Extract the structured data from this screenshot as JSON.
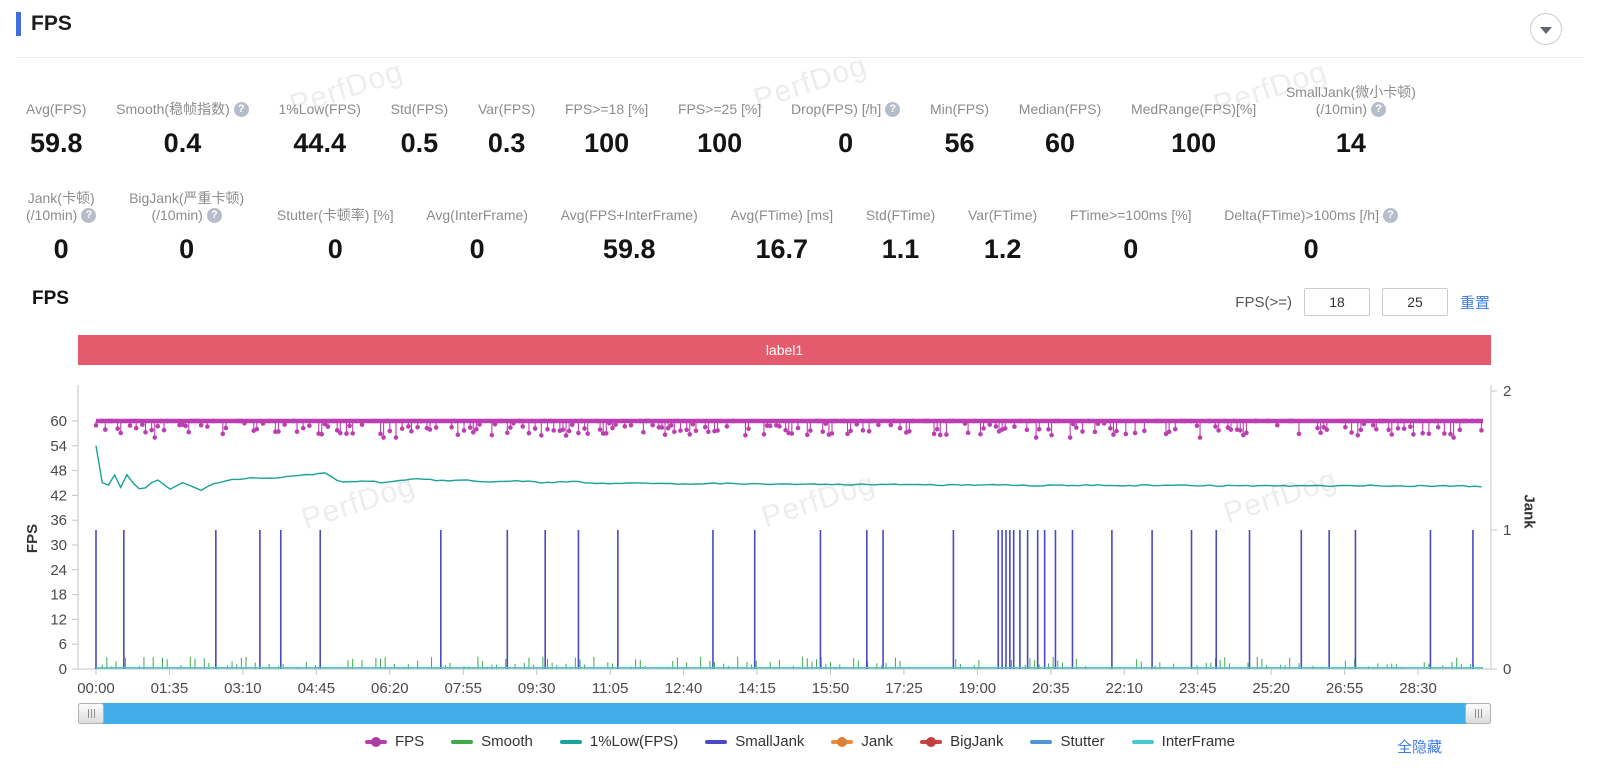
{
  "header": {
    "title": "FPS"
  },
  "stats_row1": [
    {
      "label": "Avg(FPS)",
      "value": "59.8",
      "help": false
    },
    {
      "label": "Smooth(稳帧指数)",
      "value": "0.4",
      "help": true
    },
    {
      "label": "1%Low(FPS)",
      "value": "44.4",
      "help": false
    },
    {
      "label": "Std(FPS)",
      "value": "0.5",
      "help": false
    },
    {
      "label": "Var(FPS)",
      "value": "0.3",
      "help": false
    },
    {
      "label": "FPS>=18 [%]",
      "value": "100",
      "help": false
    },
    {
      "label": "FPS>=25 [%]",
      "value": "100",
      "help": false
    },
    {
      "label": "Drop(FPS) [/h]",
      "value": "0",
      "help": true
    },
    {
      "label": "Min(FPS)",
      "value": "56",
      "help": false
    },
    {
      "label": "Median(FPS)",
      "value": "60",
      "help": false
    },
    {
      "label": "MedRange(FPS)[%]",
      "value": "100",
      "help": false
    },
    {
      "label": "SmallJank(微小卡顿)\n(/10min)",
      "value": "14",
      "help": true
    }
  ],
  "stats_row2": [
    {
      "label": "Jank(卡顿)\n(/10min)",
      "value": "0",
      "help": true
    },
    {
      "label": "BigJank(严重卡顿)\n(/10min)",
      "value": "0",
      "help": true
    },
    {
      "label": "Stutter(卡顿率) [%]",
      "value": "0",
      "help": false
    },
    {
      "label": "Avg(InterFrame)",
      "value": "0",
      "help": false
    },
    {
      "label": "Avg(FPS+InterFrame)",
      "value": "59.8",
      "help": false
    },
    {
      "label": "Avg(FTime) [ms]",
      "value": "16.7",
      "help": false
    },
    {
      "label": "Std(FTime)",
      "value": "1.1",
      "help": false
    },
    {
      "label": "Var(FTime)",
      "value": "1.2",
      "help": false
    },
    {
      "label": "FTime>=100ms [%]",
      "value": "0",
      "help": false
    },
    {
      "label": "Delta(FTime)>100ms [/h]",
      "value": "0",
      "help": true
    }
  ],
  "section": {
    "title": "FPS",
    "fps_ge_label": "FPS(>=)",
    "input1": "18",
    "input2": "25",
    "reset_label": "重置"
  },
  "banner": {
    "text": "label1",
    "color": "#e55b6e"
  },
  "watermark": {
    "text": "PerfDog"
  },
  "footer": {
    "hide_all_label": "全隐藏"
  },
  "chart_data": {
    "type": "line",
    "title": "label1",
    "seed": 1337,
    "x_axis": {
      "tick_labels": [
        "00:00",
        "01:35",
        "03:10",
        "04:45",
        "06:20",
        "07:55",
        "09:30",
        "11:05",
        "12:40",
        "14:15",
        "15:50",
        "17:25",
        "19:00",
        "20:35",
        "22:10",
        "23:45",
        "25:20",
        "26:55",
        "28:30"
      ],
      "tick_interval_s": 95,
      "duration_s": 1794
    },
    "y_left": {
      "label": "FPS",
      "ticks": [
        0,
        6,
        12,
        18,
        24,
        30,
        36,
        42,
        48,
        54,
        60
      ],
      "range": [
        0,
        60
      ]
    },
    "y_right": {
      "label": "Jank",
      "ticks": [
        0,
        1,
        2
      ],
      "range": [
        0,
        2
      ]
    },
    "grid": false,
    "legend_position": "bottom",
    "series": [
      {
        "name": "FPS",
        "color": "#bb3fb1",
        "axis": "left",
        "style": "baseline_dots",
        "baseline": 60,
        "dip_probability": 0.42,
        "dip_depth_max": 3.5,
        "min_value": 56,
        "sample_interval_s": 4
      },
      {
        "name": "Smooth",
        "color": "#3faa4a",
        "axis": "left",
        "style": "spikes",
        "spike_probability": 0.5,
        "spike_max": 3,
        "sample_interval_s": 6
      },
      {
        "name": "1%Low(FPS)",
        "color": "#1aa295",
        "axis": "left",
        "style": "line",
        "keypoints": [
          [
            0,
            54
          ],
          [
            6,
            47
          ],
          [
            10,
            43.2
          ],
          [
            16,
            44.5
          ],
          [
            20,
            47.8
          ],
          [
            26,
            46.5
          ],
          [
            30,
            44.2
          ],
          [
            36,
            43.4
          ],
          [
            40,
            47
          ],
          [
            46,
            45.5
          ],
          [
            52,
            44
          ],
          [
            60,
            43.2
          ],
          [
            70,
            44.8
          ],
          [
            78,
            46
          ],
          [
            88,
            44.6
          ],
          [
            96,
            43.5
          ],
          [
            104,
            44.3
          ],
          [
            112,
            45.1
          ],
          [
            124,
            44.2
          ],
          [
            136,
            43.2
          ],
          [
            150,
            44.8
          ],
          [
            165,
            45.3
          ],
          [
            180,
            45.9
          ],
          [
            200,
            46.3
          ],
          [
            220,
            46.0
          ],
          [
            240,
            46.5
          ],
          [
            260,
            46.8
          ],
          [
            280,
            47.1
          ],
          [
            300,
            47.4
          ],
          [
            308,
            45.7
          ],
          [
            320,
            45.2
          ],
          [
            345,
            45.6
          ],
          [
            370,
            45.1
          ],
          [
            395,
            45.7
          ],
          [
            420,
            46.0
          ],
          [
            445,
            45.5
          ],
          [
            475,
            45.8
          ],
          [
            505,
            45.3
          ],
          [
            540,
            45.6
          ],
          [
            580,
            45.1
          ],
          [
            620,
            45.3
          ],
          [
            660,
            44.9
          ],
          [
            700,
            45.1
          ],
          [
            750,
            44.8
          ],
          [
            800,
            44.9
          ],
          [
            860,
            44.7
          ],
          [
            920,
            44.8
          ],
          [
            980,
            44.6
          ],
          [
            1040,
            44.7
          ],
          [
            1100,
            44.5
          ],
          [
            1160,
            44.6
          ],
          [
            1220,
            44.4
          ],
          [
            1280,
            44.5
          ],
          [
            1340,
            44.4
          ],
          [
            1400,
            44.5
          ],
          [
            1460,
            44.3
          ],
          [
            1520,
            44.4
          ],
          [
            1580,
            44.3
          ],
          [
            1640,
            44.4
          ],
          [
            1700,
            44.3
          ],
          [
            1794,
            44.2
          ]
        ]
      },
      {
        "name": "SmallJank",
        "color": "#4a49c9",
        "axis": "right",
        "style": "impulse",
        "impulse_value": 1,
        "times_s": [
          0,
          36,
          155,
          212,
          239,
          290,
          446,
          532,
          581,
          624,
          675,
          798,
          852,
          937,
          997,
          1018,
          1109,
          1167,
          1172,
          1177,
          1182,
          1187,
          1195,
          1205,
          1218,
          1227,
          1241,
          1263,
          1314,
          1366,
          1417,
          1449,
          1492,
          1559,
          1595,
          1629,
          1726,
          1781
        ]
      },
      {
        "name": "Jank",
        "color": "#ee8a3c",
        "axis": "right",
        "style": "flat",
        "value": 0
      },
      {
        "name": "BigJank",
        "color": "#d14341",
        "axis": "right",
        "style": "flat",
        "value": 0
      },
      {
        "name": "Stutter",
        "color": "#5193d6",
        "axis": "left",
        "style": "flat",
        "value": 0
      },
      {
        "name": "InterFrame",
        "color": "#49c8cf",
        "axis": "left",
        "style": "flat",
        "value": 0
      }
    ],
    "legend": [
      {
        "name": "FPS",
        "color": "#bb3fb1",
        "marker": true
      },
      {
        "name": "Smooth",
        "color": "#3faa4a",
        "marker": false
      },
      {
        "name": "1%Low(FPS)",
        "color": "#1aa295",
        "marker": false
      },
      {
        "name": "SmallJank",
        "color": "#4a49c9",
        "marker": false
      },
      {
        "name": "Jank",
        "color": "#ee8a3c",
        "marker": true
      },
      {
        "name": "BigJank",
        "color": "#d14341",
        "marker": true
      },
      {
        "name": "Stutter",
        "color": "#5193d6",
        "marker": false
      },
      {
        "name": "InterFrame",
        "color": "#49c8cf",
        "marker": false
      }
    ]
  }
}
